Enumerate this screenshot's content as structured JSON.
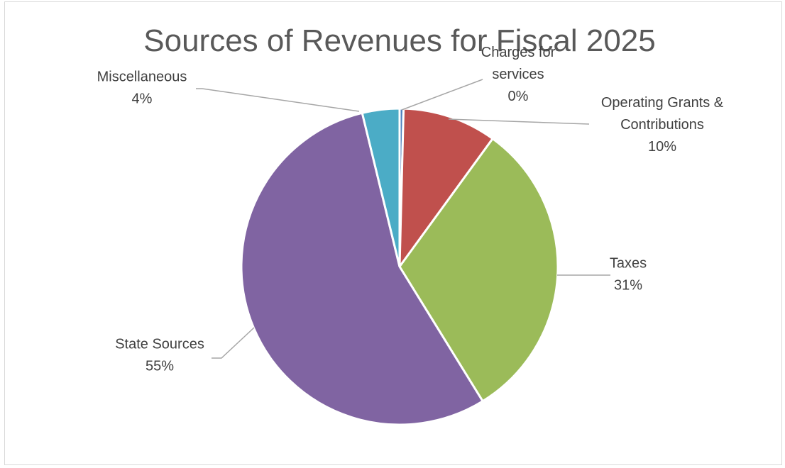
{
  "chart_data": {
    "type": "pie",
    "title": "Sources of Revenues for Fiscal 2025",
    "start_angle_deg": 0,
    "direction": "clockwise",
    "slices": [
      {
        "name": "Charges for services",
        "label_lines": [
          "Charges for",
          "services"
        ],
        "percent_label": "0%",
        "value": 0.4,
        "color": "#4f81bd"
      },
      {
        "name": "Operating Grants & Contributions",
        "label_lines": [
          "Operating Grants &",
          "Contributions"
        ],
        "percent_label": "10%",
        "value": 9.6,
        "color": "#c0504d"
      },
      {
        "name": "Taxes",
        "label_lines": [
          "Taxes"
        ],
        "percent_label": "31%",
        "value": 31.2,
        "color": "#9bbb59"
      },
      {
        "name": "State Sources",
        "label_lines": [
          "State Sources"
        ],
        "percent_label": "55%",
        "value": 55.0,
        "color": "#8064a2"
      },
      {
        "name": "Miscellaneous",
        "label_lines": [
          "Miscellaneous"
        ],
        "percent_label": "4%",
        "value": 3.8,
        "color": "#4bacc6"
      }
    ],
    "legend": "none",
    "data_labels": "outside-with-leader-lines"
  }
}
